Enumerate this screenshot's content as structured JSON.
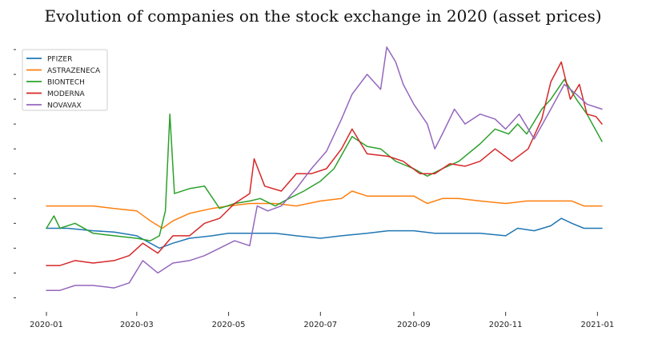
{
  "chart_data": {
    "type": "line",
    "title": "Evolution of companies on the stock exchange in 2020 (asset prices)",
    "xlabel": "",
    "ylabel": "",
    "x_ticks": [
      "2020-01",
      "2020-03",
      "2020-05",
      "2020-07",
      "2020-09",
      "2020-11",
      "2021-01"
    ],
    "xlim": [
      "2020-01-01",
      "2021-01-04"
    ],
    "ylim": [
      -5,
      100
    ],
    "y_tick_labels_visible": false,
    "grid": false,
    "legend_position": "top-left",
    "series": [
      {
        "name": "PFIZER",
        "color": "#1f77b4",
        "points": [
          [
            "2020-01-01",
            28
          ],
          [
            "2020-01-15",
            28
          ],
          [
            "2020-02-01",
            27
          ],
          [
            "2020-02-15",
            26.5
          ],
          [
            "2020-03-01",
            25
          ],
          [
            "2020-03-10",
            22
          ],
          [
            "2020-03-16",
            20
          ],
          [
            "2020-03-25",
            22
          ],
          [
            "2020-04-05",
            24
          ],
          [
            "2020-04-20",
            25
          ],
          [
            "2020-05-01",
            26
          ],
          [
            "2020-05-15",
            26
          ],
          [
            "2020-06-01",
            26
          ],
          [
            "2020-06-15",
            25
          ],
          [
            "2020-07-01",
            24
          ],
          [
            "2020-07-15",
            25
          ],
          [
            "2020-08-01",
            26
          ],
          [
            "2020-08-15",
            27
          ],
          [
            "2020-09-01",
            27
          ],
          [
            "2020-09-15",
            26
          ],
          [
            "2020-10-01",
            26
          ],
          [
            "2020-10-15",
            26
          ],
          [
            "2020-11-01",
            25
          ],
          [
            "2020-11-09",
            28
          ],
          [
            "2020-11-20",
            27
          ],
          [
            "2020-12-01",
            29
          ],
          [
            "2020-12-08",
            32
          ],
          [
            "2020-12-15",
            30
          ],
          [
            "2020-12-23",
            28
          ],
          [
            "2021-01-04",
            28
          ]
        ]
      },
      {
        "name": "ASTRAZENECA",
        "color": "#ff7f0e",
        "points": [
          [
            "2020-01-01",
            37
          ],
          [
            "2020-01-15",
            37
          ],
          [
            "2020-02-01",
            37
          ],
          [
            "2020-02-15",
            36
          ],
          [
            "2020-03-01",
            35
          ],
          [
            "2020-03-10",
            31
          ],
          [
            "2020-03-18",
            28
          ],
          [
            "2020-03-25",
            31
          ],
          [
            "2020-04-05",
            34
          ],
          [
            "2020-04-20",
            36
          ],
          [
            "2020-05-01",
            37
          ],
          [
            "2020-05-15",
            38
          ],
          [
            "2020-06-01",
            38
          ],
          [
            "2020-06-15",
            37
          ],
          [
            "2020-07-01",
            39
          ],
          [
            "2020-07-15",
            40
          ],
          [
            "2020-07-22",
            43
          ],
          [
            "2020-08-01",
            41
          ],
          [
            "2020-08-15",
            41
          ],
          [
            "2020-09-01",
            41
          ],
          [
            "2020-09-10",
            38
          ],
          [
            "2020-09-20",
            40
          ],
          [
            "2020-10-01",
            40
          ],
          [
            "2020-10-15",
            39
          ],
          [
            "2020-11-01",
            38
          ],
          [
            "2020-11-15",
            39
          ],
          [
            "2020-12-01",
            39
          ],
          [
            "2020-12-15",
            39
          ],
          [
            "2020-12-23",
            37
          ],
          [
            "2021-01-04",
            37
          ]
        ]
      },
      {
        "name": "BIONTECH",
        "color": "#2ca02c",
        "points": [
          [
            "2020-01-01",
            28
          ],
          [
            "2020-01-06",
            33
          ],
          [
            "2020-01-10",
            28
          ],
          [
            "2020-01-20",
            30
          ],
          [
            "2020-02-01",
            26
          ],
          [
            "2020-02-15",
            25
          ],
          [
            "2020-03-01",
            24
          ],
          [
            "2020-03-10",
            23
          ],
          [
            "2020-03-16",
            25
          ],
          [
            "2020-03-20",
            35
          ],
          [
            "2020-03-23",
            74
          ],
          [
            "2020-03-26",
            42
          ],
          [
            "2020-04-05",
            44
          ],
          [
            "2020-04-15",
            45
          ],
          [
            "2020-04-25",
            36
          ],
          [
            "2020-05-05",
            38
          ],
          [
            "2020-05-15",
            39
          ],
          [
            "2020-05-22",
            40
          ],
          [
            "2020-06-01",
            37
          ],
          [
            "2020-06-10",
            40
          ],
          [
            "2020-06-20",
            43
          ],
          [
            "2020-07-01",
            47
          ],
          [
            "2020-07-10",
            52
          ],
          [
            "2020-07-22",
            65
          ],
          [
            "2020-08-01",
            61
          ],
          [
            "2020-08-10",
            60
          ],
          [
            "2020-08-20",
            55
          ],
          [
            "2020-09-01",
            52
          ],
          [
            "2020-09-10",
            49
          ],
          [
            "2020-09-20",
            52
          ],
          [
            "2020-10-01",
            55
          ],
          [
            "2020-10-15",
            62
          ],
          [
            "2020-10-25",
            68
          ],
          [
            "2020-11-03",
            66
          ],
          [
            "2020-11-09",
            70
          ],
          [
            "2020-11-15",
            66
          ],
          [
            "2020-11-25",
            76
          ],
          [
            "2020-12-01",
            80
          ],
          [
            "2020-12-10",
            88
          ],
          [
            "2020-12-18",
            80
          ],
          [
            "2020-12-25",
            74
          ],
          [
            "2021-01-04",
            63
          ]
        ]
      },
      {
        "name": "MODERNA",
        "color": "#d62728",
        "points": [
          [
            "2020-01-01",
            13
          ],
          [
            "2020-01-10",
            13
          ],
          [
            "2020-01-20",
            15
          ],
          [
            "2020-02-01",
            14
          ],
          [
            "2020-02-15",
            15
          ],
          [
            "2020-02-25",
            17
          ],
          [
            "2020-03-05",
            22
          ],
          [
            "2020-03-15",
            18
          ],
          [
            "2020-03-25",
            25
          ],
          [
            "2020-04-05",
            25
          ],
          [
            "2020-04-15",
            30
          ],
          [
            "2020-04-25",
            32
          ],
          [
            "2020-05-05",
            38
          ],
          [
            "2020-05-15",
            42
          ],
          [
            "2020-05-18",
            56
          ],
          [
            "2020-05-25",
            45
          ],
          [
            "2020-06-05",
            43
          ],
          [
            "2020-06-15",
            50
          ],
          [
            "2020-06-25",
            50
          ],
          [
            "2020-07-05",
            52
          ],
          [
            "2020-07-15",
            60
          ],
          [
            "2020-07-22",
            68
          ],
          [
            "2020-08-01",
            58
          ],
          [
            "2020-08-15",
            57
          ],
          [
            "2020-08-25",
            55
          ],
          [
            "2020-09-05",
            50
          ],
          [
            "2020-09-15",
            50
          ],
          [
            "2020-09-25",
            54
          ],
          [
            "2020-10-05",
            53
          ],
          [
            "2020-10-15",
            55
          ],
          [
            "2020-10-25",
            60
          ],
          [
            "2020-11-05",
            55
          ],
          [
            "2020-11-16",
            60
          ],
          [
            "2020-11-25",
            72
          ],
          [
            "2020-12-01",
            87
          ],
          [
            "2020-12-08",
            95
          ],
          [
            "2020-12-14",
            80
          ],
          [
            "2020-12-20",
            86
          ],
          [
            "2020-12-25",
            74
          ],
          [
            "2020-12-31",
            73
          ],
          [
            "2021-01-04",
            70
          ]
        ]
      },
      {
        "name": "NOVAVAX",
        "color": "#9467bd",
        "points": [
          [
            "2020-01-01",
            3
          ],
          [
            "2020-01-10",
            3
          ],
          [
            "2020-01-20",
            5
          ],
          [
            "2020-02-01",
            5
          ],
          [
            "2020-02-15",
            4
          ],
          [
            "2020-02-25",
            6
          ],
          [
            "2020-03-05",
            15
          ],
          [
            "2020-03-15",
            10
          ],
          [
            "2020-03-25",
            14
          ],
          [
            "2020-04-05",
            15
          ],
          [
            "2020-04-15",
            17
          ],
          [
            "2020-04-25",
            20
          ],
          [
            "2020-05-05",
            23
          ],
          [
            "2020-05-15",
            21
          ],
          [
            "2020-05-20",
            37
          ],
          [
            "2020-05-27",
            35
          ],
          [
            "2020-06-05",
            37
          ],
          [
            "2020-06-15",
            44
          ],
          [
            "2020-06-25",
            52
          ],
          [
            "2020-07-05",
            59
          ],
          [
            "2020-07-15",
            72
          ],
          [
            "2020-07-22",
            82
          ],
          [
            "2020-08-01",
            90
          ],
          [
            "2020-08-10",
            84
          ],
          [
            "2020-08-14",
            101
          ],
          [
            "2020-08-20",
            95
          ],
          [
            "2020-08-25",
            86
          ],
          [
            "2020-09-01",
            78
          ],
          [
            "2020-09-10",
            70
          ],
          [
            "2020-09-15",
            60
          ],
          [
            "2020-09-20",
            66
          ],
          [
            "2020-09-28",
            76
          ],
          [
            "2020-10-05",
            70
          ],
          [
            "2020-10-15",
            74
          ],
          [
            "2020-10-25",
            72
          ],
          [
            "2020-11-01",
            68
          ],
          [
            "2020-11-10",
            74
          ],
          [
            "2020-11-20",
            64
          ],
          [
            "2020-12-01",
            76
          ],
          [
            "2020-12-10",
            86
          ],
          [
            "2020-12-18",
            82
          ],
          [
            "2020-12-25",
            78
          ],
          [
            "2021-01-04",
            76
          ]
        ]
      }
    ]
  }
}
